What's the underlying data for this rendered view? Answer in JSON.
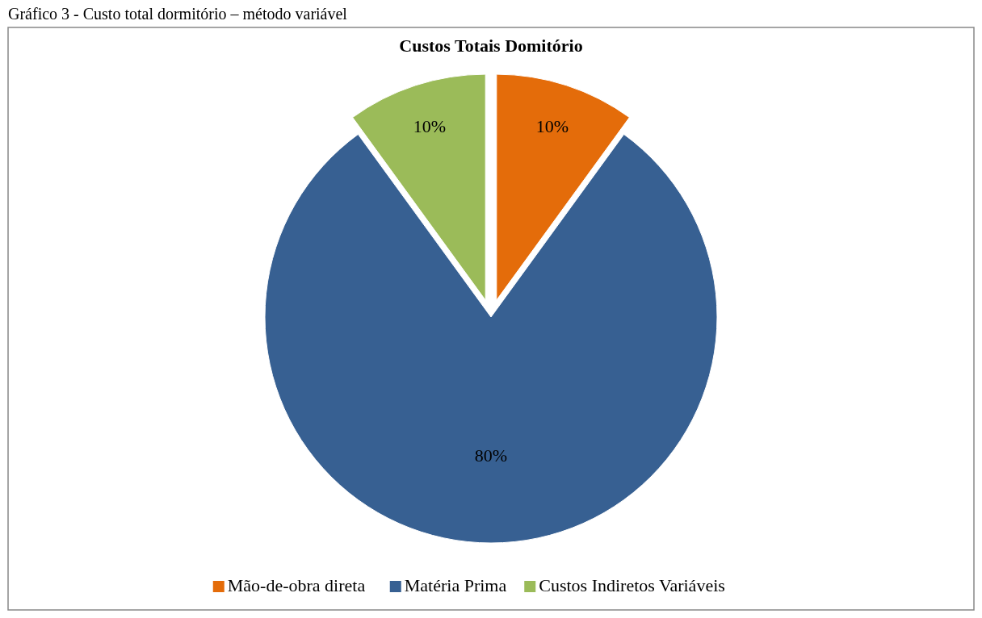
{
  "chart_data": {
    "type": "pie",
    "title": "Custos Totais Domitório",
    "annotations": [
      "Gráfico 3 - Custo total dormitório – método variável"
    ],
    "categories": [
      "Mão-de-obra direta",
      "Matéria Prima",
      "Custos Indiretos Variáveis"
    ],
    "values": [
      10,
      80,
      10
    ],
    "colors": [
      "#e46c0a",
      "#376092",
      "#9bbb59"
    ],
    "value_labels": [
      "10%",
      "80%",
      "10%"
    ],
    "legend": "bottom"
  }
}
